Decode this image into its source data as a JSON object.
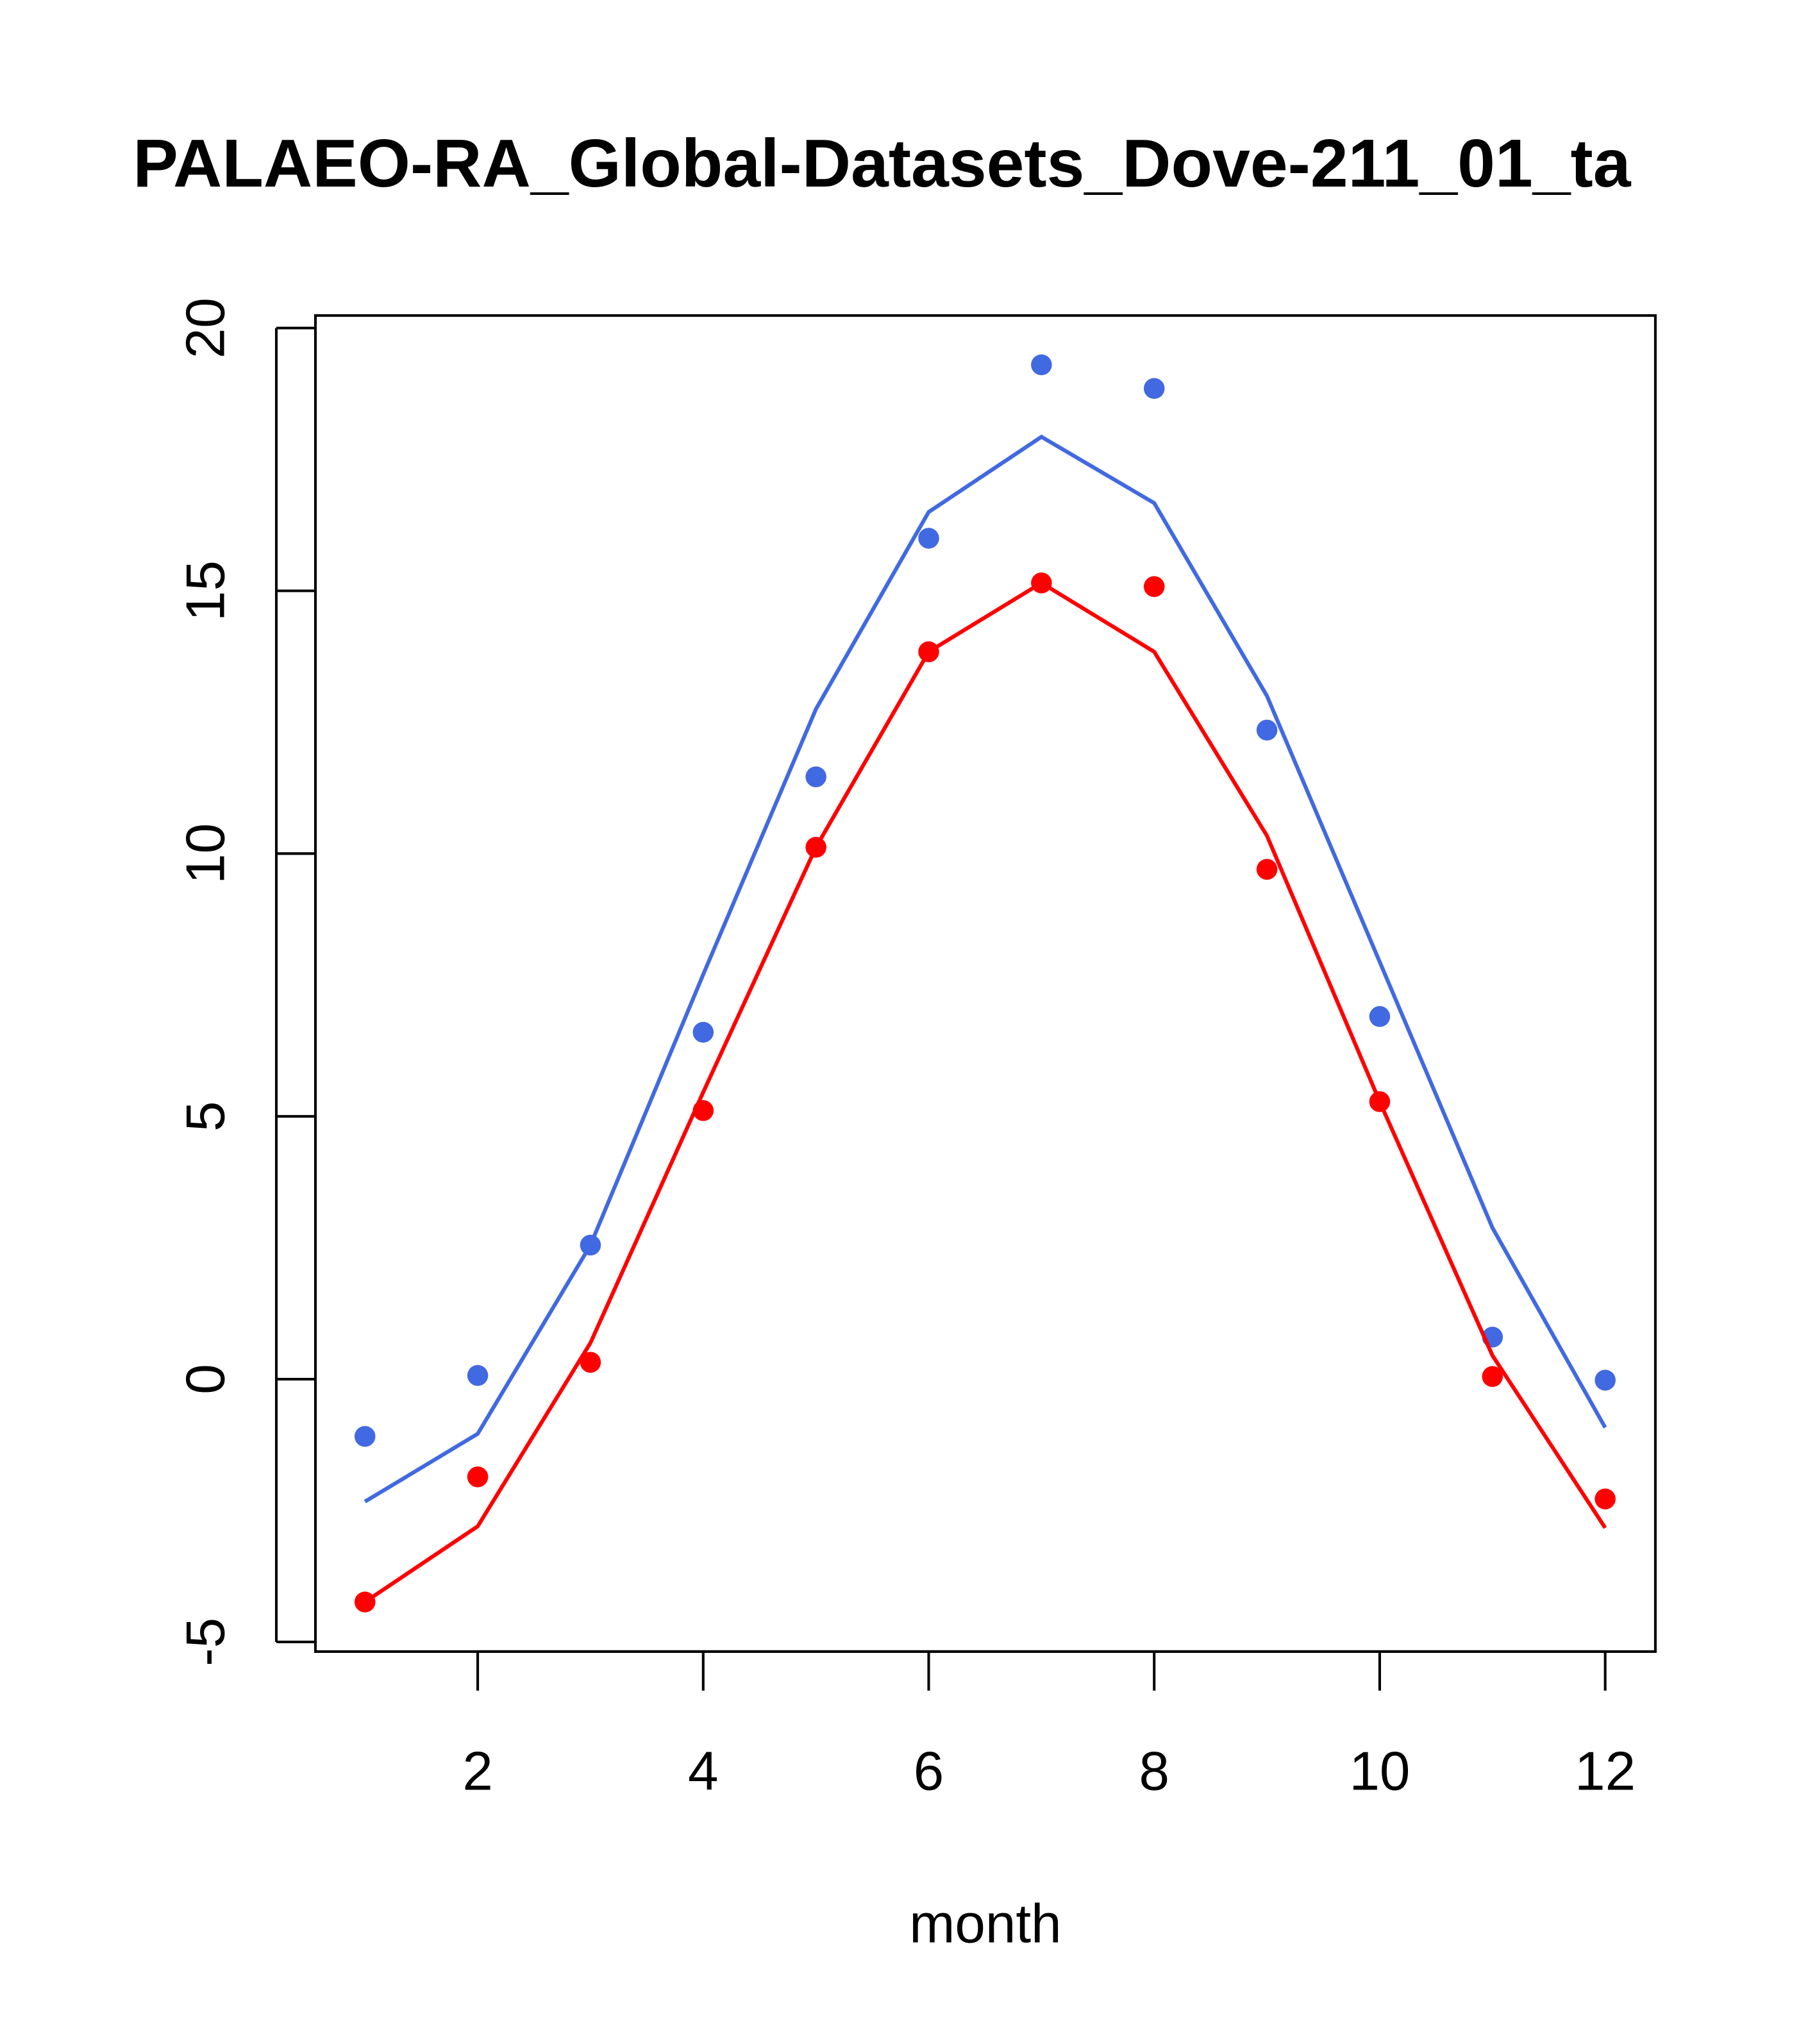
{
  "chart_data": {
    "type": "line",
    "title": "PALAEO-RA_Global-Datasets_Dove-211_01_ta",
    "xlabel": "month",
    "ylabel": "",
    "xlim": [
      0.56,
      12.44
    ],
    "ylim": [
      -5.2,
      20.3
    ],
    "xticks": [
      2,
      4,
      6,
      8,
      10,
      12
    ],
    "yticks": [
      -5,
      0,
      5,
      10,
      15,
      20
    ],
    "grid": false,
    "x": [
      1,
      2,
      3,
      4,
      5,
      6,
      7,
      8,
      9,
      10,
      11,
      12
    ],
    "series": [
      {
        "name": "blue points",
        "kind": "points",
        "color": "#4169E1",
        "values": [
          -1.09,
          0.07,
          2.55,
          6.6,
          11.46,
          16.0,
          19.3,
          18.85,
          12.35,
          6.9,
          0.8,
          -0.02
        ]
      },
      {
        "name": "blue line",
        "kind": "line",
        "color": "#4169E1",
        "values": [
          -2.33,
          -1.04,
          2.55,
          7.7,
          12.75,
          16.5,
          17.93,
          16.67,
          13.0,
          7.94,
          2.88,
          -0.92
        ]
      },
      {
        "name": "red points",
        "kind": "points",
        "color": "#FF0000",
        "values": [
          -4.24,
          -1.86,
          0.32,
          5.11,
          10.12,
          13.84,
          15.15,
          15.08,
          9.7,
          5.28,
          0.05,
          -2.28
        ]
      },
      {
        "name": "red line",
        "kind": "line",
        "color": "#FF0000",
        "values": [
          -4.24,
          -2.8,
          0.69,
          5.46,
          10.12,
          13.84,
          15.15,
          13.84,
          10.34,
          5.28,
          0.45,
          -2.83
        ]
      }
    ]
  }
}
